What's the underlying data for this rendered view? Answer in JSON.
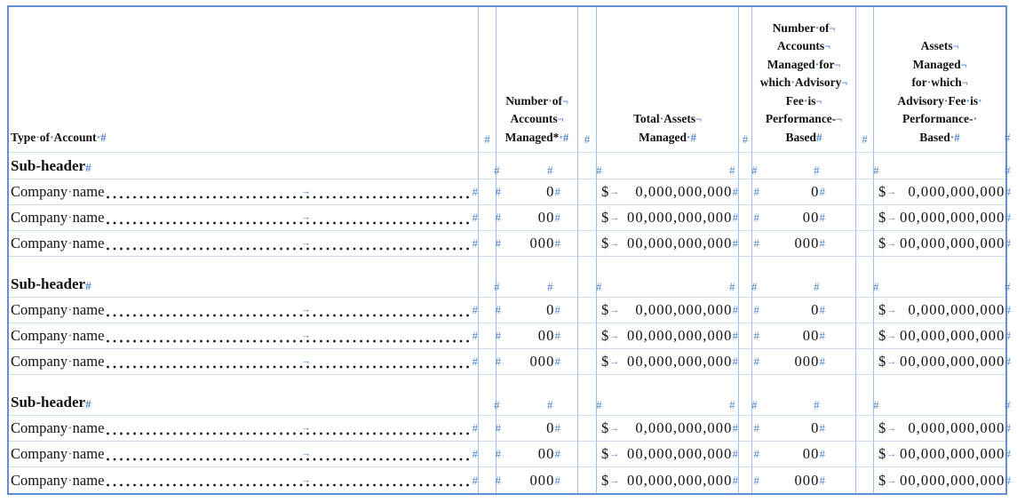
{
  "marks": {
    "cell": "#",
    "line_break": "¬",
    "space": "·",
    "tab": "→"
  },
  "currency": "$",
  "colors": {
    "formatting_mark_blue": "#4d82cc",
    "table_border_outer": "#5f90d4",
    "table_border_inner_vertical": "#9dbfe8",
    "table_border_inner_horizontal": "#ccdcf0",
    "text": "#111111"
  },
  "header": {
    "type_of_account": "Type of Account",
    "accounts_managed_lines": [
      "Number of",
      "Accounts",
      "Managed*"
    ],
    "total_assets_lines": [
      "Total Assets",
      "Managed"
    ],
    "perf_accounts_lines": [
      "Number of",
      "Accounts",
      "Managed for",
      "which Advisory",
      "Fee is",
      "Performance-",
      "Based"
    ],
    "perf_assets_lines": [
      "Assets",
      "Managed",
      "for which",
      "Advisory Fee is",
      "Performance-",
      "Based"
    ]
  },
  "groups": [
    {
      "subheader": "Sub-header",
      "rows": [
        {
          "name": "Company name",
          "accounts": "0",
          "total_assets": "0,000,000,000",
          "perf_accounts": "0",
          "perf_assets": "0,000,000,000"
        },
        {
          "name": "Company name",
          "accounts": "00",
          "total_assets": "00,000,000,000",
          "perf_accounts": "00",
          "perf_assets": "00,000,000,000"
        },
        {
          "name": "Company name",
          "accounts": "000",
          "total_assets": "00,000,000,000",
          "perf_accounts": "000",
          "perf_assets": "00,000,000,000"
        }
      ]
    },
    {
      "subheader": "Sub-header",
      "rows": [
        {
          "name": "Company name",
          "accounts": "0",
          "total_assets": "0,000,000,000",
          "perf_accounts": "0",
          "perf_assets": "0,000,000,000"
        },
        {
          "name": "Company name",
          "accounts": "00",
          "total_assets": "00,000,000,000",
          "perf_accounts": "00",
          "perf_assets": "00,000,000,000"
        },
        {
          "name": "Company name",
          "accounts": "000",
          "total_assets": "00,000,000,000",
          "perf_accounts": "000",
          "perf_assets": "00,000,000,000"
        }
      ]
    },
    {
      "subheader": "Sub-header",
      "rows": [
        {
          "name": "Company name",
          "accounts": "0",
          "total_assets": "0,000,000,000",
          "perf_accounts": "0",
          "perf_assets": "0,000,000,000"
        },
        {
          "name": "Company name",
          "accounts": "00",
          "total_assets": "00,000,000,000",
          "perf_accounts": "00",
          "perf_assets": "00,000,000,000"
        },
        {
          "name": "Company name",
          "accounts": "000",
          "total_assets": "00,000,000,000",
          "perf_accounts": "000",
          "perf_assets": "00,000,000,000"
        }
      ]
    }
  ]
}
